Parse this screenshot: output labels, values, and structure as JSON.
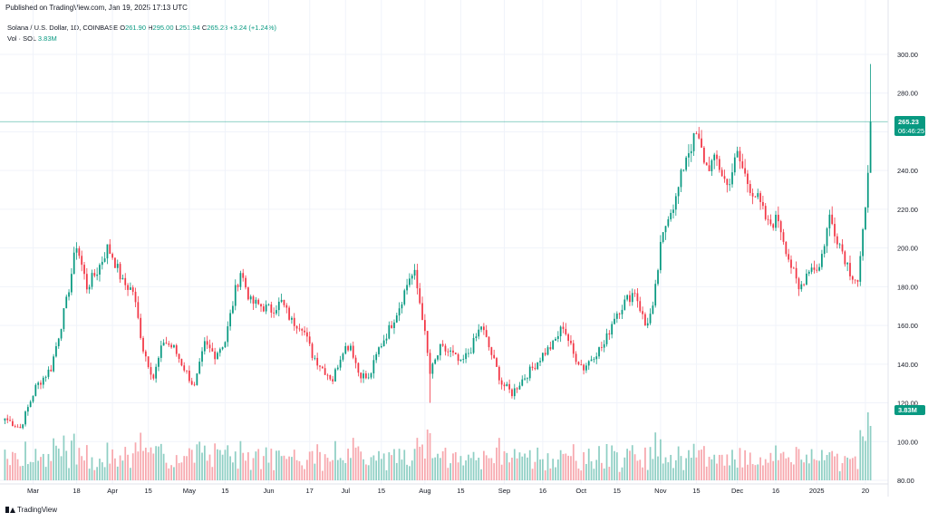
{
  "header": {
    "published": "Published on TradingView.com, Jan 19, 2025 17:13 UTC"
  },
  "legend": {
    "symbol": "Solana / U.S. Dollar, 1D, COINBASE",
    "o_key": "O",
    "o_val": "261.90",
    "h_key": "H",
    "h_val": "295.00",
    "l_key": "L",
    "l_val": "251.94",
    "c_key": "C",
    "c_val": "265.23",
    "change": "+3.24 (+1.24%)",
    "vol_label": "Vol · SOL",
    "vol_val": "3.83M"
  },
  "badges": {
    "price": "265.23",
    "countdown": "06:46:25",
    "volume": "3.83M"
  },
  "footer": {
    "logo_text": "TradingView"
  },
  "colors": {
    "up": "#089981",
    "down": "#f23645",
    "vol_up": "#8fcfc4",
    "vol_down": "#f7a8ae",
    "grid": "#f0f3fa",
    "axis": "#131722"
  },
  "chart_data": {
    "type": "candlestick",
    "title": "Solana / U.S. Dollar, 1D, COINBASE",
    "ylim": [
      80,
      300
    ],
    "y_ticks": [
      300,
      280,
      260,
      240,
      220,
      200,
      180,
      160,
      140,
      120,
      100,
      80
    ],
    "y_tick_labels": [
      "300.00",
      "280.00",
      "260.00",
      "240.00",
      "220.00",
      "200.00",
      "180.00",
      "160.00",
      "140.00",
      "120.00",
      "100.00",
      "80.00"
    ],
    "x_ticks": [
      {
        "label": "Mar",
        "day": 11
      },
      {
        "label": "18",
        "day": 28
      },
      {
        "label": "Apr",
        "day": 42
      },
      {
        "label": "15",
        "day": 56
      },
      {
        "label": "May",
        "day": 72
      },
      {
        "label": "15",
        "day": 86
      },
      {
        "label": "Jun",
        "day": 103
      },
      {
        "label": "17",
        "day": 119
      },
      {
        "label": "Jul",
        "day": 133
      },
      {
        "label": "15",
        "day": 147
      },
      {
        "label": "Aug",
        "day": 164
      },
      {
        "label": "15",
        "day": 178
      },
      {
        "label": "Sep",
        "day": 195
      },
      {
        "label": "16",
        "day": 210
      },
      {
        "label": "Oct",
        "day": 225
      },
      {
        "label": "15",
        "day": 239
      },
      {
        "label": "Nov",
        "day": 256
      },
      {
        "label": "15",
        "day": 270
      },
      {
        "label": "Dec",
        "day": 286
      },
      {
        "label": "16",
        "day": 301
      },
      {
        "label": "2025",
        "day": 317
      },
      {
        "label": "20",
        "day": 336
      }
    ],
    "last_close": 265.23,
    "key_points": [
      [
        0,
        112
      ],
      [
        6,
        107
      ],
      [
        12,
        128
      ],
      [
        18,
        138
      ],
      [
        24,
        172
      ],
      [
        28,
        202
      ],
      [
        32,
        180
      ],
      [
        36,
        188
      ],
      [
        40,
        200
      ],
      [
        42,
        196
      ],
      [
        46,
        182
      ],
      [
        50,
        178
      ],
      [
        54,
        148
      ],
      [
        58,
        133
      ],
      [
        62,
        152
      ],
      [
        66,
        148
      ],
      [
        70,
        138
      ],
      [
        74,
        128
      ],
      [
        78,
        150
      ],
      [
        82,
        145
      ],
      [
        86,
        152
      ],
      [
        90,
        178
      ],
      [
        92,
        188
      ],
      [
        96,
        172
      ],
      [
        100,
        170
      ],
      [
        104,
        168
      ],
      [
        108,
        172
      ],
      [
        112,
        162
      ],
      [
        116,
        160
      ],
      [
        120,
        145
      ],
      [
        124,
        138
      ],
      [
        128,
        132
      ],
      [
        132,
        148
      ],
      [
        135,
        150
      ],
      [
        138,
        136
      ],
      [
        142,
        132
      ],
      [
        146,
        148
      ],
      [
        150,
        158
      ],
      [
        154,
        170
      ],
      [
        158,
        185
      ],
      [
        160,
        186
      ],
      [
        163,
        165
      ],
      [
        166,
        135
      ],
      [
        170,
        148
      ],
      [
        174,
        146
      ],
      [
        178,
        140
      ],
      [
        182,
        148
      ],
      [
        186,
        160
      ],
      [
        190,
        145
      ],
      [
        194,
        130
      ],
      [
        198,
        125
      ],
      [
        202,
        132
      ],
      [
        206,
        138
      ],
      [
        210,
        145
      ],
      [
        214,
        150
      ],
      [
        218,
        160
      ],
      [
        222,
        145
      ],
      [
        226,
        138
      ],
      [
        230,
        145
      ],
      [
        234,
        150
      ],
      [
        238,
        165
      ],
      [
        242,
        172
      ],
      [
        246,
        178
      ],
      [
        250,
        160
      ],
      [
        253,
        168
      ],
      [
        256,
        200
      ],
      [
        259,
        218
      ],
      [
        262,
        225
      ],
      [
        266,
        248
      ],
      [
        270,
        258
      ],
      [
        274,
        242
      ],
      [
        278,
        245
      ],
      [
        282,
        232
      ],
      [
        286,
        248
      ],
      [
        290,
        234
      ],
      [
        294,
        225
      ],
      [
        298,
        212
      ],
      [
        302,
        215
      ],
      [
        306,
        195
      ],
      [
        310,
        178
      ],
      [
        314,
        190
      ],
      [
        318,
        190
      ],
      [
        322,
        216
      ],
      [
        326,
        202
      ],
      [
        330,
        188
      ],
      [
        333,
        183
      ],
      [
        336,
        218
      ],
      [
        338,
        265.23
      ]
    ]
  }
}
